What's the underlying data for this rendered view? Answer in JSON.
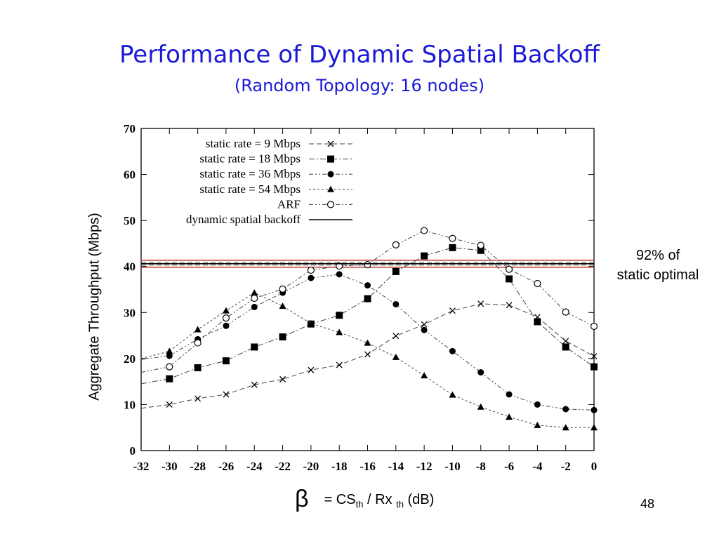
{
  "slide": {
    "title": "Performance of Dynamic Spatial Backoff",
    "subtitle": "(Random Topology: 16 nodes)",
    "annotation_line1": "92% of",
    "annotation_line2": "static optimal",
    "page_number": "48"
  },
  "chart_data": {
    "type": "line",
    "title": "",
    "xlabel": {
      "symbol": "β",
      "prefix": "= CS",
      "sub1": "th",
      "mid": " / Rx ",
      "sub2": "th",
      "suffix": " (dB)"
    },
    "ylabel": "Aggregate Throughput (Mbps)",
    "xlim": [
      -32,
      0
    ],
    "ylim": [
      0,
      70
    ],
    "xticks": [
      -32,
      -30,
      -28,
      -26,
      -24,
      -22,
      -20,
      -18,
      -16,
      -14,
      -12,
      -10,
      -8,
      -6,
      -4,
      -2,
      0
    ],
    "yticks": [
      0,
      10,
      20,
      30,
      40,
      50,
      60,
      70
    ],
    "grid": false,
    "legend_position": "top-left",
    "x": [
      -32,
      -30,
      -28,
      -26,
      -24,
      -22,
      -20,
      -18,
      -16,
      -14,
      -12,
      -10,
      -8,
      -6,
      -4,
      -2,
      0
    ],
    "series": [
      {
        "name": "static rate = 9 Mbps",
        "marker": "x",
        "dash": "dashed",
        "values": [
          9.2,
          10,
          11.3,
          12.2,
          14.3,
          15.5,
          17.5,
          18.6,
          20.9,
          24.9,
          27.4,
          30.4,
          31.9,
          31.6,
          29,
          23.8,
          20.5
        ]
      },
      {
        "name": "static rate = 18 Mbps",
        "marker": "square",
        "dash": "dashdot",
        "values": [
          14.5,
          15.6,
          18,
          19.5,
          22.5,
          24.7,
          27.5,
          29.4,
          33,
          38.9,
          42.3,
          44.1,
          43.5,
          37.3,
          28,
          22.5,
          18.2
        ]
      },
      {
        "name": "static rate = 36 Mbps",
        "marker": "circle",
        "dash": "dashdotdot",
        "values": [
          19.8,
          20.6,
          24.2,
          27.1,
          31.2,
          34.3,
          37.5,
          38.3,
          35.9,
          31.8,
          26.2,
          21.6,
          17,
          12.2,
          10,
          9,
          8.8
        ]
      },
      {
        "name": "static rate = 54 Mbps",
        "marker": "triangle",
        "dash": "dotted",
        "values": [
          20,
          21.6,
          26.3,
          30.4,
          34.3,
          31.4,
          27.6,
          25.7,
          23.4,
          20.3,
          16.3,
          12.1,
          9.5,
          7.3,
          5.5,
          5,
          5
        ]
      },
      {
        "name": "ARF",
        "marker": "open-circle",
        "dash": "dashdotdot",
        "values": [
          17,
          18.2,
          23.4,
          28.8,
          33.1,
          35.1,
          39.2,
          40.1,
          40.4,
          44.7,
          47.8,
          46.1,
          44.6,
          39.4,
          36.3,
          30.1,
          27
        ]
      },
      {
        "name": "dynamic spatial backoff",
        "marker": "none",
        "dash": "solid",
        "values": [
          40.6,
          40.6,
          40.6,
          40.6,
          40.6,
          40.6,
          40.6,
          40.6,
          40.6,
          40.6,
          40.6,
          40.6,
          40.6,
          40.6,
          40.6,
          40.6,
          40.6
        ]
      }
    ],
    "colors": {
      "series": "#000000",
      "highlight_band": "#c0392b"
    }
  }
}
